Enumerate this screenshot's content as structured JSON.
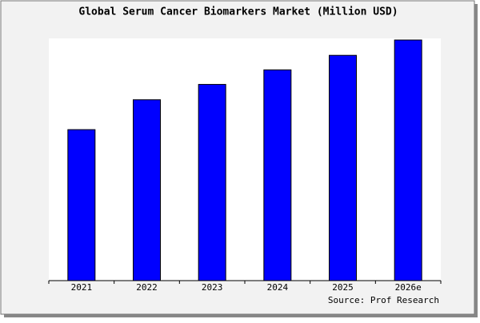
{
  "chart_data": {
    "type": "bar",
    "title": "Global Serum Cancer Biomarkers Market (Million USD)",
    "categories": [
      "2021",
      "2022",
      "2023",
      "2024",
      "2025",
      "2026e"
    ],
    "values": [
      187,
      224,
      243,
      261,
      279,
      298
    ],
    "color": "#0000ff",
    "ylim": [
      0,
      300
    ],
    "source": "Source: Prof Research"
  }
}
